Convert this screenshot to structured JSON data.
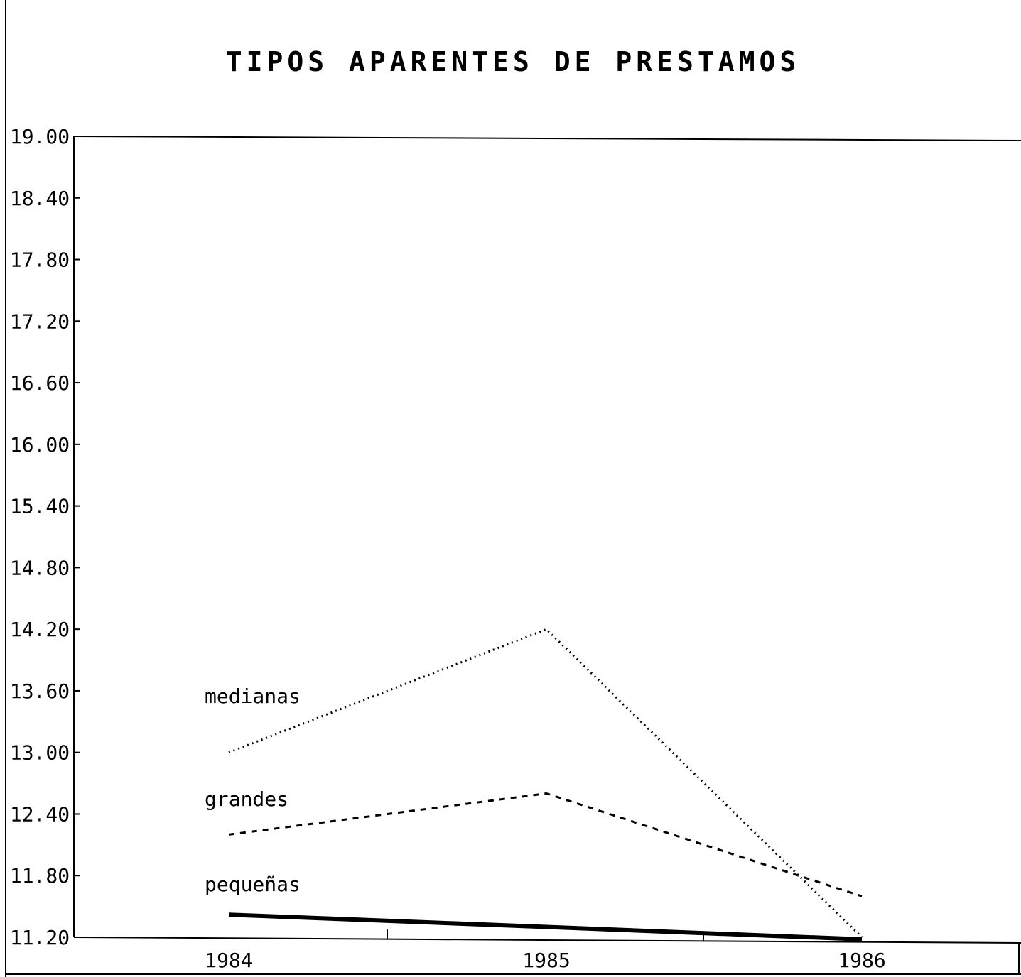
{
  "chart_data": {
    "type": "line",
    "title": "TIPOS APARENTES DE PRESTAMOS",
    "xlabel": "",
    "ylabel": "",
    "x": [
      "1984",
      "1985",
      "1986"
    ],
    "ylim": [
      11.2,
      19.0
    ],
    "y_ticks": [
      "19.00",
      "18.40",
      "17.80",
      "17.20",
      "16.60",
      "16.00",
      "15.40",
      "14.80",
      "14.20",
      "13.60",
      "13.00",
      "12.40",
      "11.80",
      "11.20"
    ],
    "grid": false,
    "legend": "inline labels",
    "series": [
      {
        "name": "medianas",
        "values": [
          13.0,
          14.2,
          11.2
        ],
        "style": "dotted",
        "color": "#000000"
      },
      {
        "name": "grandes",
        "values": [
          12.2,
          12.6,
          11.6
        ],
        "style": "dashed",
        "color": "#000000"
      },
      {
        "name": "pequeñas",
        "values": [
          11.42,
          11.3,
          11.18
        ],
        "style": "solid-thick",
        "color": "#000000"
      }
    ]
  }
}
